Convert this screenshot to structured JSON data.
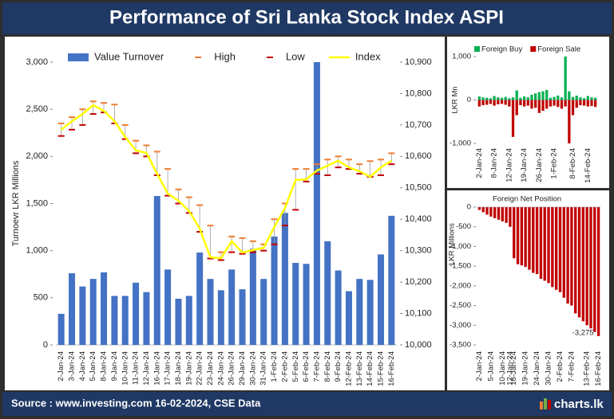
{
  "header": {
    "title": "Performance of Sri Lanka Stock Index ASPI"
  },
  "footer": {
    "source": "Source : www.investing.com 16-02-2024, CSE Data",
    "logo": "charts.lk"
  },
  "chart_data": [
    {
      "type": "combo",
      "y_label": "Turnoevr LKR Millions",
      "categories": [
        "2-Jan-24",
        "3-Jan-24",
        "4-Jan-24",
        "5-Jan-24",
        "8-Jan-24",
        "9-Jan-24",
        "10-Jan-24",
        "11-Jan-24",
        "12-Jan-24",
        "16-Jan-24",
        "17-Jan-24",
        "18-Jan-24",
        "19-Jan-24",
        "22-Jan-24",
        "23-Jan-24",
        "24-Jan-24",
        "26-Jan-24",
        "29-Jan-24",
        "30-Jan-24",
        "31-Jan-24",
        "1-Feb-24",
        "2-Feb-24",
        "5-Feb-24",
        "6-Feb-24",
        "7-Feb-24",
        "8-Feb-24",
        "9-Feb-24",
        "12-Feb-24",
        "13-Feb-24",
        "14-Feb-24",
        "15-Feb-24",
        "16-Feb-24"
      ],
      "series": [
        {
          "name": "Value Turnover",
          "type": "bar",
          "color": "#4472c4",
          "values": [
            330,
            760,
            620,
            700,
            770,
            520,
            520,
            660,
            560,
            1580,
            800,
            490,
            520,
            980,
            700,
            580,
            800,
            590,
            1020,
            700,
            1150,
            1400,
            870,
            860,
            3000,
            1100,
            790,
            570,
            700,
            690,
            960,
            1370
          ]
        },
        {
          "name": "High",
          "type": "high",
          "axis": "y2",
          "color": "#ed7d31",
          "values": [
            10705,
            10725,
            10750,
            10775,
            10770,
            10765,
            10700,
            10650,
            10635,
            10615,
            10560,
            10495,
            10470,
            10445,
            10380,
            10295,
            10345,
            10340,
            10330,
            10320,
            10400,
            10450,
            10560,
            10560,
            10575,
            10590,
            10600,
            10590,
            10575,
            10585,
            10590,
            10610
          ]
        },
        {
          "name": "Low",
          "type": "low",
          "axis": "y2",
          "color": "#c00000",
          "values": [
            10665,
            10685,
            10700,
            10735,
            10740,
            10705,
            10655,
            10610,
            10600,
            10540,
            10475,
            10450,
            10420,
            10360,
            10275,
            10270,
            10295,
            10290,
            10295,
            10300,
            10320,
            10380,
            10430,
            10520,
            10545,
            10540,
            10565,
            10560,
            10545,
            10535,
            10540,
            10575
          ]
        },
        {
          "name": "Index",
          "type": "line",
          "axis": "y2",
          "color": "#ffff00",
          "values": [
            10685,
            10712,
            10735,
            10763,
            10745,
            10712,
            10662,
            10619,
            10611,
            10545,
            10482,
            10459,
            10426,
            10370,
            10279,
            10276,
            10330,
            10294,
            10302,
            10309,
            10375,
            10436,
            10525,
            10527,
            10555,
            10570,
            10586,
            10565,
            10553,
            10535,
            10565,
            10586
          ]
        }
      ],
      "ylim": [
        0,
        3000
      ],
      "yticks": [
        0,
        500,
        {
          "value": 1000,
          "label": "1,000"
        },
        {
          "value": 1500,
          "label": "1,500"
        },
        {
          "value": 2000,
          "label": "2,000"
        },
        {
          "value": 2500,
          "label": "2,500"
        },
        {
          "value": 3000,
          "label": "3,000"
        }
      ],
      "y2lim": [
        10000,
        10900
      ],
      "y2ticks": [
        {
          "value": 10000,
          "label": "10,000"
        },
        {
          "value": 10100,
          "label": "10,100"
        },
        {
          "value": 10200,
          "label": "10,200"
        },
        {
          "value": 10300,
          "label": "10,300"
        },
        {
          "value": 10400,
          "label": "10,400"
        },
        {
          "value": 10500,
          "label": "10,500"
        },
        {
          "value": 10600,
          "label": "10,600"
        },
        {
          "value": 10700,
          "label": "10,700"
        },
        {
          "value": 10800,
          "label": "10,800"
        },
        {
          "value": 10900,
          "label": "10,900"
        }
      ]
    },
    {
      "type": "bar",
      "y_label": "LKR Mn",
      "categories": [
        "2-Jan-24",
        null,
        null,
        null,
        "8-Jan-24",
        null,
        null,
        null,
        "12-Jan-24",
        null,
        null,
        null,
        "19-Jan-24",
        null,
        null,
        null,
        "26-Jan-24",
        null,
        null,
        null,
        "1-Feb-24",
        null,
        null,
        null,
        null,
        "8-Feb-24",
        null,
        null,
        null,
        "14-Feb-24",
        null,
        null
      ],
      "series": [
        {
          "name": "Foreign Buy",
          "color": "#00b050",
          "values": [
            80,
            60,
            50,
            40,
            90,
            60,
            50,
            70,
            40,
            60,
            220,
            50,
            80,
            60,
            120,
            150,
            180,
            200,
            230,
            50,
            70,
            100,
            60,
            1000,
            200,
            70,
            100,
            60,
            40,
            90,
            60,
            50
          ]
        },
        {
          "name": "Foreign Sale",
          "color": "#c00000",
          "values": [
            -150,
            -120,
            -110,
            -90,
            -130,
            -100,
            -90,
            -110,
            -150,
            -850,
            -350,
            -120,
            -150,
            -130,
            -200,
            -180,
            -300,
            -250,
            -200,
            -150,
            -130,
            -160,
            -200,
            -150,
            -1000,
            -350,
            -180,
            -120,
            -130,
            -150,
            -140,
            -160
          ]
        }
      ],
      "ylim": [
        -1000,
        1000
      ],
      "yticks": [
        {
          "value": -1000,
          "label": "-1,000"
        },
        0,
        {
          "value": 1000,
          "label": "1,000"
        }
      ]
    },
    {
      "type": "bar",
      "title": "Foreign Net Position",
      "y_label": "LKR Millions",
      "categories": [
        "2-Jan-24",
        null,
        null,
        "5-Jan-24",
        null,
        null,
        "10-Jan-24",
        null,
        "12-Jan-24",
        "16-Jan-24",
        null,
        null,
        "19-Jan-24",
        null,
        null,
        "24-Jan-24",
        null,
        null,
        "30-Jan-24",
        null,
        null,
        "2-Feb-24",
        null,
        null,
        "7-Feb-24",
        null,
        null,
        null,
        "13-Feb-24",
        null,
        null,
        "16-Feb-24"
      ],
      "color": "#c00000",
      "values": [
        -70,
        -130,
        -190,
        -240,
        -280,
        -320,
        -360,
        -400,
        -500,
        -1300,
        -1450,
        -1480,
        -1520,
        -1590,
        -1670,
        -1700,
        -1820,
        -1870,
        -1930,
        -2030,
        -2100,
        -2160,
        -2300,
        -2450,
        -2500,
        -2700,
        -2800,
        -2900,
        -3000,
        -3080,
        -3170,
        -3275
      ],
      "value_labels": [
        null,
        null,
        null,
        null,
        null,
        null,
        null,
        null,
        null,
        null,
        null,
        null,
        null,
        null,
        null,
        null,
        null,
        null,
        null,
        null,
        null,
        null,
        null,
        null,
        null,
        null,
        null,
        null,
        null,
        null,
        null,
        "-3,275"
      ],
      "ylim": [
        -3500,
        0
      ],
      "yticks": [
        0,
        -500,
        {
          "value": -1000,
          "label": "-1,000"
        },
        {
          "value": -1500,
          "label": "-1,500"
        },
        {
          "value": -2000,
          "label": "-2,000"
        },
        {
          "value": -2500,
          "label": "-2,500"
        },
        {
          "value": -3000,
          "label": "-3,000"
        },
        {
          "value": -3500,
          "label": "-3,500"
        }
      ]
    }
  ]
}
